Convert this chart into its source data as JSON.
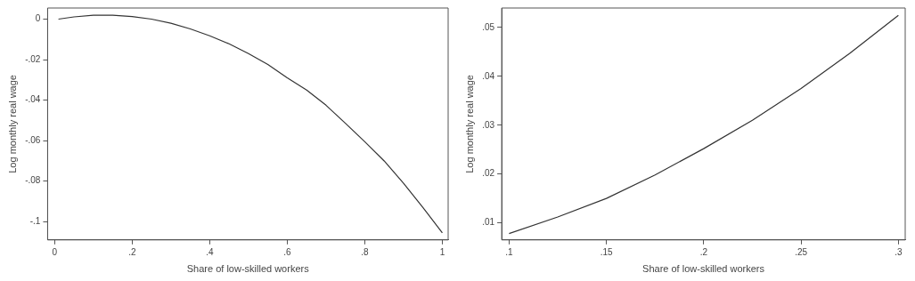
{
  "chart_data": [
    {
      "type": "line",
      "xlabel": "Share of low-skilled workers",
      "ylabel": "Log monthly real wage",
      "x": [
        0.01,
        0.05,
        0.1,
        0.15,
        0.2,
        0.25,
        0.3,
        0.35,
        0.4,
        0.45,
        0.5,
        0.55,
        0.6,
        0.65,
        0.7,
        0.75,
        0.8,
        0.85,
        0.9,
        0.95,
        1
      ],
      "series": [
        {
          "color": "#333333",
          "values": [
            0,
            0.0011,
            0.0019,
            0.0019,
            0.0013,
            0,
            -0.002,
            -0.0048,
            -0.0082,
            -0.0122,
            -0.017,
            -0.0224,
            -0.029,
            -0.035,
            -0.0425,
            -0.0514,
            -0.0605,
            -0.07,
            -0.081,
            -0.093,
            -0.1055
          ]
        }
      ],
      "xlim": [
        -0.018,
        1.015
      ],
      "ylim": [
        -0.109,
        0.0055
      ],
      "xticks": [
        0,
        {
          "value": 0.2,
          "label": ".2"
        },
        {
          "value": 0.4,
          "label": ".4"
        },
        {
          "value": 0.6,
          "label": ".6"
        },
        {
          "value": 0.8,
          "label": ".8"
        },
        1
      ],
      "yticks": [
        0,
        {
          "value": -0.02,
          "label": "-.02"
        },
        {
          "value": -0.04,
          "label": "-.04"
        },
        {
          "value": -0.06,
          "label": "-.06"
        },
        {
          "value": -0.08,
          "label": "-.08"
        },
        {
          "value": -0.1,
          "label": "-.1"
        }
      ],
      "grid": false,
      "legend": false,
      "marker": "none",
      "line_style": "solid"
    },
    {
      "type": "line",
      "xlabel": "Share of low-skilled workers",
      "ylabel": "Log monthly real wage",
      "x": [
        0.1,
        0.125,
        0.15,
        0.175,
        0.2,
        0.225,
        0.25,
        0.275,
        0.3
      ],
      "series": [
        {
          "color": "#333333",
          "values": [
            0.0078,
            0.0112,
            0.015,
            0.0198,
            0.0252,
            0.031,
            0.0375,
            0.0447,
            0.0525
          ]
        }
      ],
      "xlim": [
        0.0962,
        0.3035
      ],
      "ylim": [
        0.0065,
        0.054
      ],
      "xticks": [
        {
          "value": 0.1,
          "label": ".1"
        },
        {
          "value": 0.15,
          "label": ".15"
        },
        {
          "value": 0.2,
          "label": ".2"
        },
        {
          "value": 0.25,
          "label": ".25"
        },
        {
          "value": 0.3,
          "label": ".3"
        }
      ],
      "yticks": [
        {
          "value": 0.01,
          "label": ".01"
        },
        {
          "value": 0.02,
          "label": ".02"
        },
        {
          "value": 0.03,
          "label": ".03"
        },
        {
          "value": 0.04,
          "label": ".04"
        },
        {
          "value": 0.05,
          "label": ".05"
        }
      ],
      "grid": false,
      "legend": false,
      "marker": "none",
      "line_style": "solid"
    }
  ]
}
